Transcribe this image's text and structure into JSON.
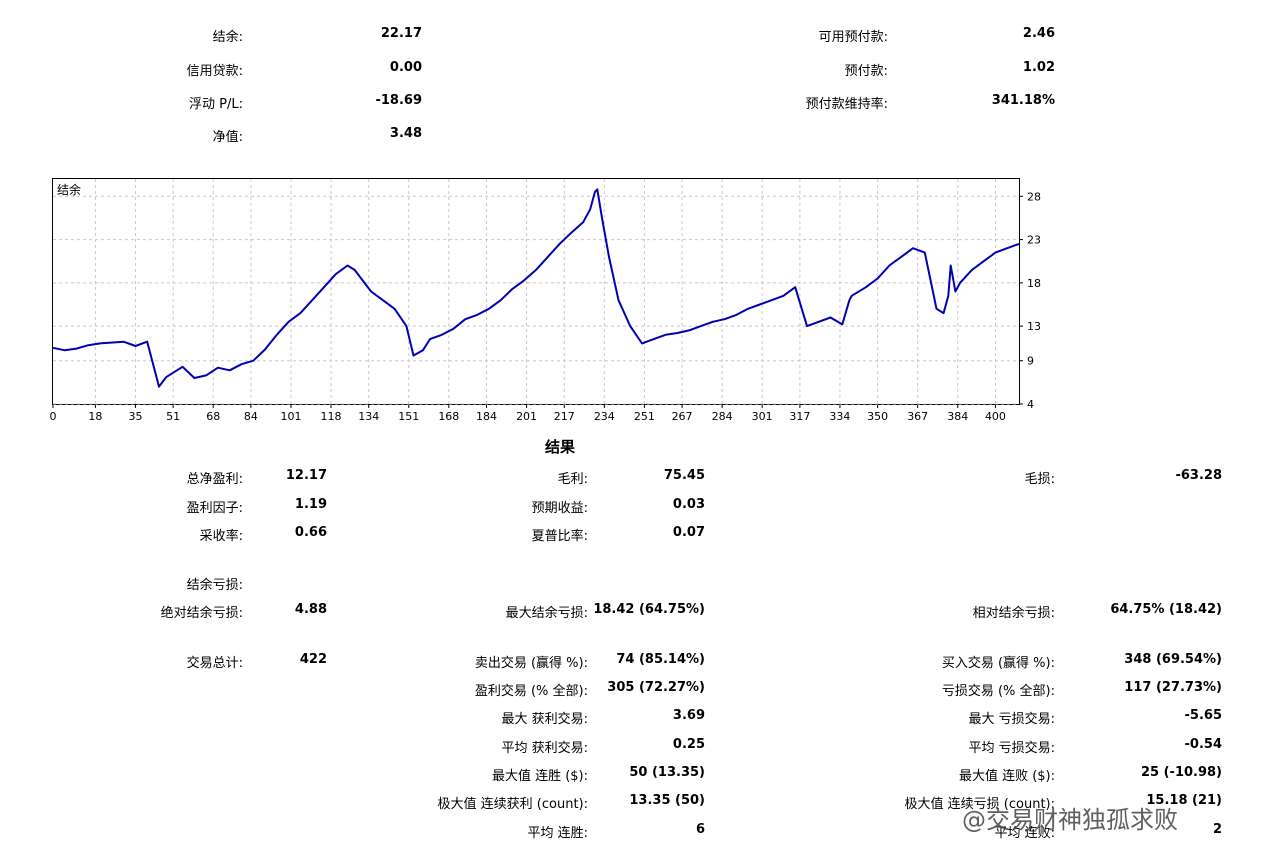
{
  "summary": {
    "balance_label": "结余:",
    "balance": "22.17",
    "credit_label": "信用贷款:",
    "credit": "0.00",
    "floating_label": "浮动 P/L:",
    "floating": "-18.69",
    "equity_label": "净值:",
    "equity": "3.48",
    "free_margin_label": "可用预付款:",
    "free_margin": "2.46",
    "margin_label": "预付款:",
    "margin": "1.02",
    "margin_level_label": "预付款维持率:",
    "margin_level": "341.18%"
  },
  "chart_data": {
    "type": "line",
    "title": "结余",
    "xlabel": "",
    "ylabel": "",
    "xlim": [
      0,
      410
    ],
    "ylim": [
      4,
      30
    ],
    "x_ticks": [
      0,
      18,
      35,
      51,
      68,
      84,
      101,
      118,
      134,
      151,
      168,
      184,
      201,
      217,
      234,
      251,
      267,
      284,
      301,
      317,
      334,
      350,
      367,
      384,
      400
    ],
    "y_ticks": [
      4,
      9,
      13,
      18,
      23,
      28
    ],
    "grid": true,
    "color": "#0000b4",
    "series": [
      {
        "x": [
          0,
          5,
          10,
          15,
          20,
          30,
          35,
          40,
          45,
          48,
          55,
          60,
          65,
          70,
          75,
          80,
          85,
          90,
          95,
          100,
          105,
          110,
          115,
          120,
          125,
          128,
          135,
          140,
          145,
          150,
          153,
          157,
          160,
          165,
          170,
          175,
          180,
          185,
          190,
          195,
          200,
          205,
          210,
          215,
          220,
          225,
          228,
          230,
          231,
          233,
          236,
          240,
          245,
          250,
          255,
          260,
          265,
          270,
          275,
          280,
          285,
          290,
          295,
          300,
          305,
          310,
          315,
          320,
          325,
          330,
          335,
          338,
          339,
          345,
          350,
          355,
          360,
          365,
          370,
          375,
          378,
          380,
          381,
          383,
          385,
          390,
          395,
          400,
          405,
          408,
          410
        ],
        "y": [
          10.5,
          10.2,
          10.4,
          10.8,
          11.0,
          11.2,
          10.7,
          11.2,
          6.0,
          7.1,
          8.3,
          7.0,
          7.3,
          8.2,
          7.9,
          8.6,
          9.0,
          10.3,
          12.0,
          13.5,
          14.5,
          16.0,
          17.5,
          19.0,
          20.0,
          19.5,
          17.0,
          16.0,
          15.0,
          13.0,
          9.6,
          10.2,
          11.5,
          12.0,
          12.7,
          13.8,
          14.3,
          15.0,
          16.0,
          17.3,
          18.3,
          19.5,
          21.0,
          22.5,
          23.8,
          25.0,
          26.5,
          28.5,
          28.8,
          25.5,
          21.0,
          16.0,
          13.0,
          11.0,
          11.5,
          12.0,
          12.2,
          12.5,
          13.0,
          13.5,
          13.8,
          14.3,
          15.0,
          15.5,
          16.0,
          16.5,
          17.5,
          13.0,
          13.5,
          14.0,
          13.2,
          16.0,
          16.5,
          17.5,
          18.5,
          20.0,
          21.0,
          22.0,
          21.5,
          15.0,
          14.5,
          16.5,
          20.0,
          17.0,
          18.0,
          19.5,
          20.5,
          21.5,
          22.0,
          22.3,
          22.5
        ]
      }
    ]
  },
  "results": {
    "title": "结果",
    "total_net_profit_label": "总净盈利:",
    "total_net_profit": "12.17",
    "gross_profit_label": "毛利:",
    "gross_profit": "75.45",
    "gross_loss_label": "毛损:",
    "gross_loss": "-63.28",
    "profit_factor_label": "盈利因子:",
    "profit_factor": "1.19",
    "expected_payoff_label": "预期收益:",
    "expected_payoff": "0.03",
    "recovery_factor_label": "采收率:",
    "recovery_factor": "0.66",
    "sharpe_label": "夏普比率:",
    "sharpe": "0.07",
    "balance_drawdown_label": "结余亏损:",
    "abs_drawdown_label": "绝对结余亏损:",
    "abs_drawdown": "4.88",
    "max_drawdown_label": "最大结余亏损:",
    "max_drawdown": "18.42 (64.75%)",
    "rel_drawdown_label": "相对结余亏损:",
    "rel_drawdown": "64.75% (18.42)",
    "total_trades_label": "交易总计:",
    "total_trades": "422",
    "short_trades_label": "卖出交易 (赢得 %):",
    "short_trades": "74 (85.14%)",
    "long_trades_label": "买入交易 (赢得 %):",
    "long_trades": "348 (69.54%)",
    "profit_trades_label": "盈利交易 (% 全部):",
    "profit_trades": "305 (72.27%)",
    "loss_trades_label": "亏损交易 (% 全部):",
    "loss_trades": "117 (27.73%)",
    "largest_profit_label": "最大 获利交易:",
    "largest_profit": "3.69",
    "largest_loss_label": "最大 亏损交易:",
    "largest_loss": "-5.65",
    "avg_profit_label": "平均 获利交易:",
    "avg_profit": "0.25",
    "avg_loss_label": "平均 亏损交易:",
    "avg_loss": "-0.54",
    "max_consec_wins_label": "最大值 连胜 ($):",
    "max_consec_wins": "50 (13.35)",
    "max_consec_losses_label": "最大值 连败 ($):",
    "max_consec_losses": "25 (-10.98)",
    "maximal_consec_profit_label": "极大值 连续获利 (count):",
    "maximal_consec_profit": "13.35 (50)",
    "maximal_consec_loss_label": "极大值 连续亏损 (count):",
    "maximal_consec_loss": "15.18 (21)",
    "avg_consec_wins_label": "平均 连胜:",
    "avg_consec_wins": "6",
    "avg_consec_losses_label": "平均 连败:",
    "avg_consec_losses": "2"
  },
  "watermark": "@交易财神独孤求败"
}
